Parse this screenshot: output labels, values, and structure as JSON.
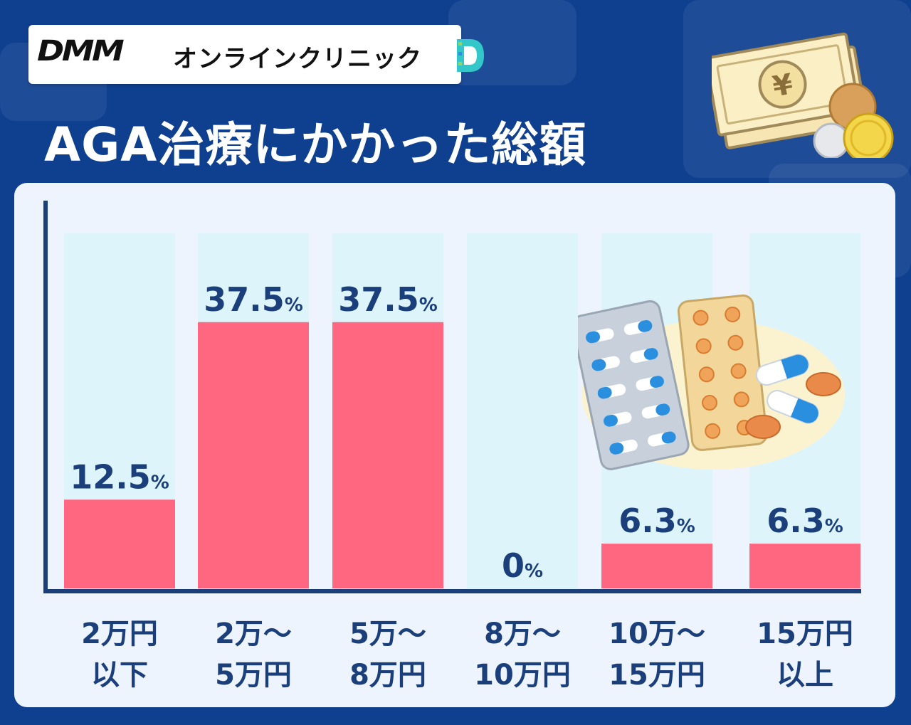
{
  "logo": {
    "brand": "DMM",
    "service": "オンラインクリニック"
  },
  "title": "AGA治療にかかった総額",
  "colors": {
    "bar": "#ff6680",
    "track": "#def4fb",
    "axis": "#1a3f7a",
    "label": "#1a3f7a",
    "background": "#0f3f8f"
  },
  "chart_data": {
    "type": "bar",
    "title": "AGA治療にかかった総額",
    "categories": [
      "2万円\n以下",
      "2万〜\n5万円",
      "5万〜\n8万円",
      "8万〜\n10万円",
      "10万〜\n15万円",
      "15万円\n以上"
    ],
    "values": [
      12.5,
      37.5,
      37.5,
      0,
      6.3,
      6.3
    ],
    "value_labels": [
      "12.5",
      "37.5",
      "37.5",
      "0",
      "6.3",
      "6.3"
    ],
    "unit": "%",
    "ylim": [
      0,
      50
    ],
    "grid": false,
    "legend": "none"
  }
}
